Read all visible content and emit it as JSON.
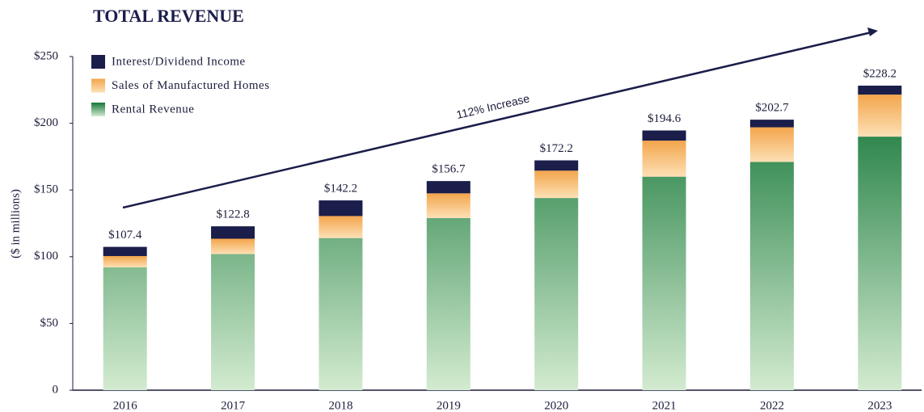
{
  "chart_data": {
    "type": "stacked_bar",
    "title": "TOTAL REVENUE",
    "y_label": "($ in millions)",
    "categories": [
      "2016",
      "2017",
      "2018",
      "2019",
      "2020",
      "2021",
      "2022",
      "2023"
    ],
    "series": [
      {
        "name": "Rental Revenue",
        "color": "#17783a",
        "color_light": "#d3ebd0",
        "values": [
          92,
          102,
          114,
          129,
          144,
          160,
          171,
          190
        ]
      },
      {
        "name": "Sales of Manufactured Homes",
        "color": "#f3a54c",
        "color_light": "#fde0b5",
        "values": [
          8.5,
          11.5,
          16.5,
          18.5,
          20.5,
          27,
          26,
          31.5
        ]
      },
      {
        "name": "Interest/Dividend Income",
        "color": "#1b1d4a",
        "color_light": "#1b1d4a",
        "values": [
          6.9,
          9.3,
          11.7,
          9.2,
          7.7,
          7.6,
          5.7,
          6.7
        ]
      }
    ],
    "totals": [
      107.4,
      122.8,
      142.2,
      156.7,
      172.2,
      194.6,
      202.7,
      228.2
    ],
    "total_labels": [
      "$107.4",
      "$122.8",
      "$142.2",
      "$156.7",
      "$172.2",
      "$194.6",
      "$202.7",
      "$228.2"
    ],
    "ylim": [
      0,
      250
    ],
    "yticks": [
      0,
      {
        "value": 50,
        "label": "$50"
      },
      {
        "value": 100,
        "label": "$100"
      },
      {
        "value": 150,
        "label": "$150"
      },
      {
        "value": 200,
        "label": "$200"
      },
      {
        "value": 250,
        "label": "$250"
      }
    ],
    "annotation": "112% Increase",
    "legend": "top-left"
  }
}
